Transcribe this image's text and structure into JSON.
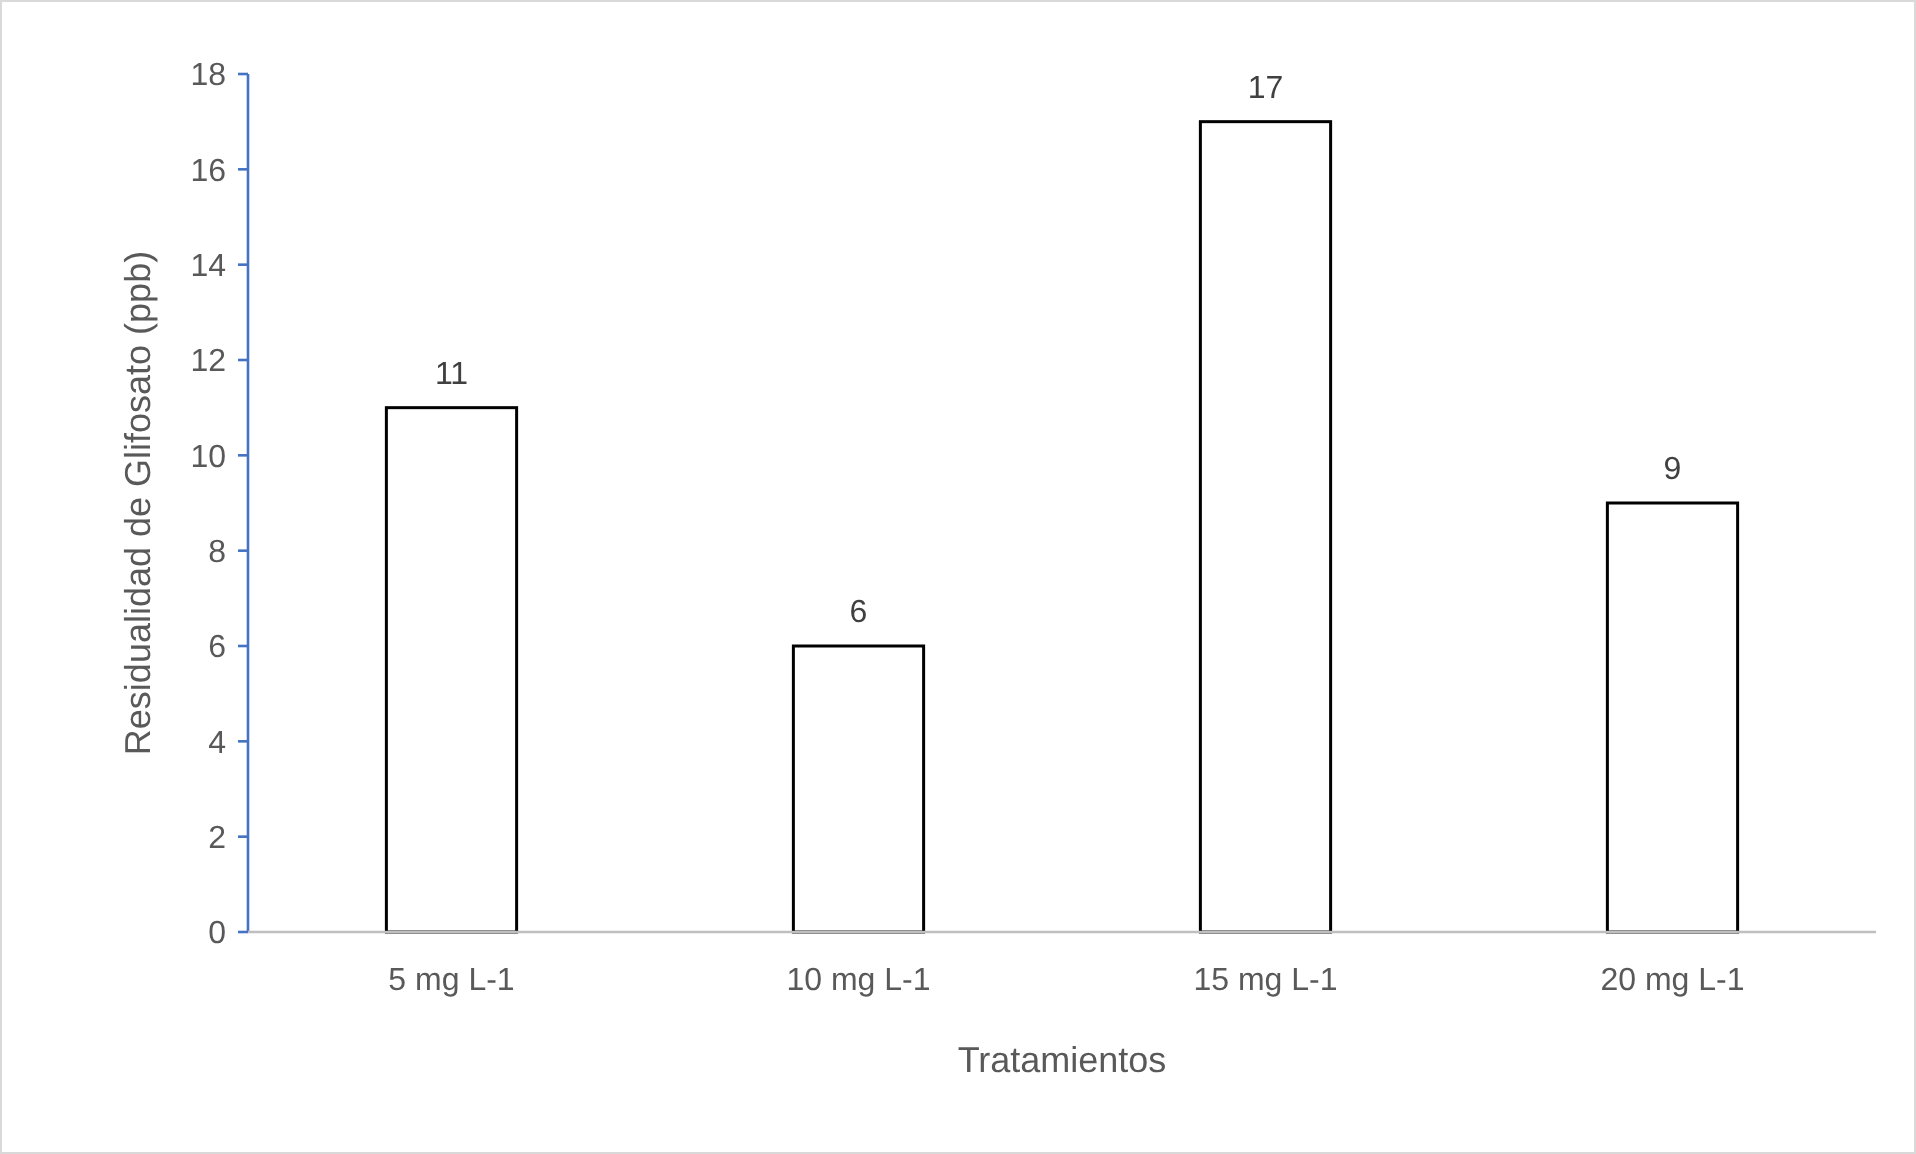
{
  "chart_data": {
    "type": "bar",
    "xlabel": "Tratamientos",
    "ylabel": "Residualidad de Glifosato (ppb)",
    "categories": [
      "5 mg L-1",
      "10 mg L-1",
      "15 mg L-1",
      "20 mg L-1"
    ],
    "values": [
      11,
      6,
      17,
      9
    ],
    "color": "#ffffff",
    "ylim": [
      0,
      18
    ],
    "yticks": [
      0,
      2,
      4,
      6,
      8,
      10,
      12,
      14,
      16,
      18
    ],
    "grid": false,
    "data_labels": true
  }
}
